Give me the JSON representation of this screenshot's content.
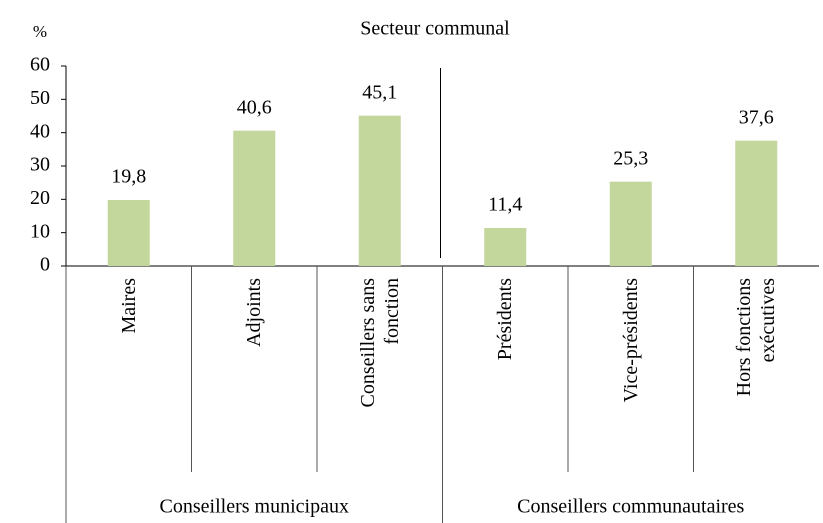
{
  "chart_data": {
    "type": "bar",
    "title": "Secteur communal",
    "y_label": "%",
    "categories": [
      "Maires",
      "Adjoints",
      "Conseillers sans fonction",
      "Présidents",
      "Vice-présidents",
      "Hors fonctions exécutives"
    ],
    "groups": [
      "Conseillers municipaux",
      "Conseillers communautaires"
    ],
    "values": [
      19.8,
      40.6,
      45.1,
      11.4,
      25.3,
      37.6
    ],
    "value_labels": [
      "19,8",
      "40,6",
      "45,1",
      "11,4",
      "25,3",
      "37,6"
    ],
    "color": "#c3d69b",
    "ylim": [
      0,
      60
    ],
    "yticks": [
      0,
      10,
      20,
      30,
      40,
      50,
      60
    ],
    "grid": false
  }
}
